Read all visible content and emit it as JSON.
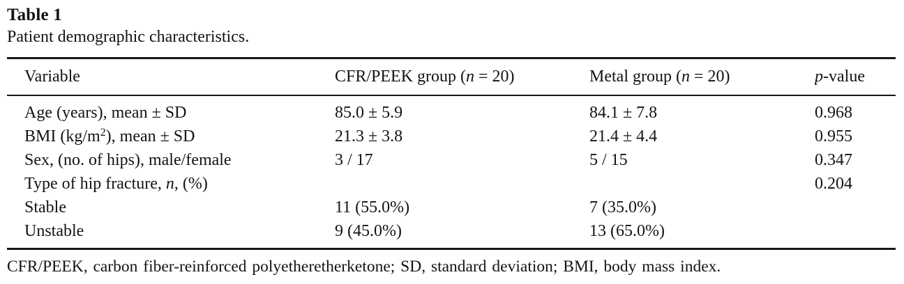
{
  "title": "Table 1",
  "caption": "Patient demographic characteristics.",
  "table": {
    "columns": [
      {
        "label_html": "Variable"
      },
      {
        "label_html": "CFR/PEEK group (<i>n</i> = 20)"
      },
      {
        "label_html": "Metal group (<i>n</i> = 20)"
      },
      {
        "label_html": "<i>p</i>-value"
      }
    ],
    "rows": [
      {
        "variable_html": "Age (years), mean ± SD",
        "cfr_peek": "85.0 ± 5.9",
        "metal": "84.1 ± 7.8",
        "p_value": "0.968"
      },
      {
        "variable_html": "BMI (kg/m<sup>2</sup>), mean ± SD",
        "cfr_peek": "21.3 ± 3.8",
        "metal": "21.4 ± 4.4",
        "p_value": "0.955"
      },
      {
        "variable_html": "Sex, (no. of hips), male/female",
        "cfr_peek": "3 / 17",
        "metal": "5 / 15",
        "p_value": "0.347"
      },
      {
        "variable_html": "Type of hip fracture, <i>n</i>, (%)",
        "cfr_peek": "",
        "metal": "",
        "p_value": "0.204"
      },
      {
        "variable_html": "Stable",
        "cfr_peek": "11 (55.0%)",
        "metal": "7 (35.0%)",
        "p_value": ""
      },
      {
        "variable_html": "Unstable",
        "cfr_peek": "9 (45.0%)",
        "metal": "13 (65.0%)",
        "p_value": ""
      }
    ]
  },
  "footnote": "CFR/PEEK, carbon fiber-reinforced polyetheretherketone; SD, standard deviation; BMI, body mass index.",
  "colors": {
    "text": "#141414",
    "rule": "#161616",
    "background": "#ffffff"
  }
}
